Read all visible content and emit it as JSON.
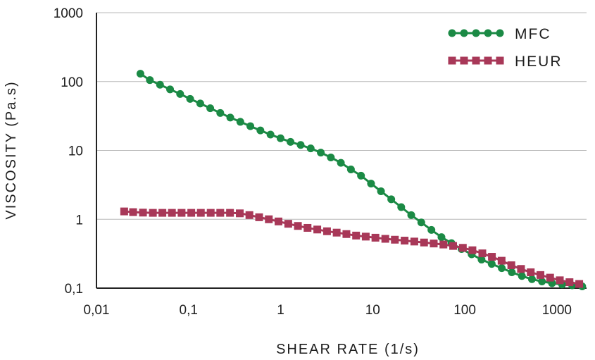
{
  "chart_data": {
    "type": "line",
    "xscale": "log",
    "yscale": "log",
    "xlabel": "SHEAR RATE (1/s)",
    "ylabel": "VISCOSITY (Pa.s)",
    "xlim": [
      0.01,
      2100
    ],
    "ylim": [
      0.1,
      1000
    ],
    "x_ticks": [
      0.01,
      0.1,
      1,
      10,
      100,
      1000
    ],
    "x_tick_labels": [
      "0,01",
      "0,1",
      "1",
      "10",
      "100",
      "1000"
    ],
    "y_ticks": [
      0.1,
      1,
      10,
      100,
      1000
    ],
    "y_tick_labels": [
      "0,1",
      "1",
      "10",
      "100",
      "1000"
    ],
    "grid": true,
    "legend_position": "top-right",
    "series": [
      {
        "name": "MFC",
        "color": "#1b8a45",
        "marker": "circle",
        "x": [
          0.03,
          0.038,
          0.049,
          0.063,
          0.081,
          0.104,
          0.134,
          0.172,
          0.221,
          0.284,
          0.365,
          0.469,
          0.603,
          0.776,
          0.998,
          1.28,
          1.65,
          2.12,
          2.73,
          3.51,
          4.51,
          5.8,
          7.46,
          9.59,
          12.3,
          15.9,
          20.4,
          26.2,
          33.7,
          43.4,
          55.8,
          71.7,
          92.2,
          118.6,
          152,
          196,
          252,
          324,
          417,
          536,
          689,
          886,
          1140,
          1465,
          1884
        ],
        "values": [
          130,
          105,
          90,
          77,
          66,
          56,
          48,
          41,
          35,
          30,
          26,
          22.5,
          19.5,
          17,
          15,
          13.3,
          12,
          10.7,
          9.3,
          7.9,
          6.6,
          5.3,
          4.3,
          3.3,
          2.55,
          1.95,
          1.5,
          1.15,
          0.9,
          0.7,
          0.55,
          0.45,
          0.37,
          0.31,
          0.26,
          0.225,
          0.195,
          0.17,
          0.15,
          0.135,
          0.125,
          0.118,
          0.113,
          0.11,
          0.106
        ]
      },
      {
        "name": "HEUR",
        "color": "#a83858",
        "marker": "square",
        "x": [
          0.02,
          0.025,
          0.032,
          0.041,
          0.052,
          0.066,
          0.084,
          0.107,
          0.136,
          0.174,
          0.221,
          0.282,
          0.36,
          0.458,
          0.584,
          0.744,
          0.948,
          1.21,
          1.54,
          1.96,
          2.5,
          3.19,
          4.06,
          5.18,
          6.6,
          8.4,
          10.7,
          13.7,
          17.4,
          22.2,
          28.3,
          36.1,
          46,
          58.6,
          74.7,
          95.2,
          121,
          155,
          197,
          251,
          320,
          408,
          520,
          663,
          844,
          1076,
          1371,
          1748
        ],
        "values": [
          1.3,
          1.27,
          1.25,
          1.24,
          1.24,
          1.24,
          1.24,
          1.24,
          1.24,
          1.24,
          1.24,
          1.24,
          1.22,
          1.15,
          1.07,
          1.0,
          0.93,
          0.86,
          0.8,
          0.75,
          0.71,
          0.67,
          0.64,
          0.61,
          0.58,
          0.56,
          0.54,
          0.52,
          0.505,
          0.49,
          0.475,
          0.46,
          0.445,
          0.43,
          0.41,
          0.385,
          0.355,
          0.32,
          0.285,
          0.25,
          0.215,
          0.19,
          0.17,
          0.155,
          0.142,
          0.13,
          0.122,
          0.115
        ]
      }
    ]
  }
}
